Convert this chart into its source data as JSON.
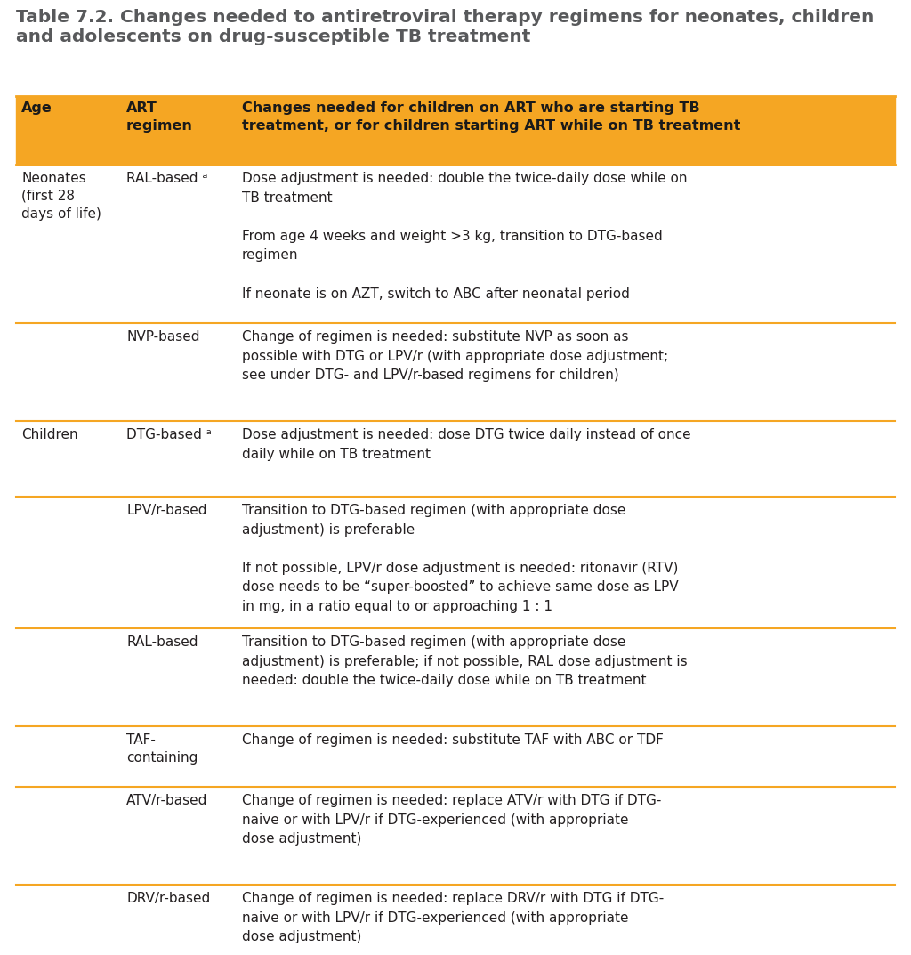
{
  "title_line1": "Table 7.2. Changes needed to antiretroviral therapy regimens for neonates, children",
  "title_line2": "and adolescents on drug-susceptible TB treatment",
  "title_color": "#58595b",
  "title_fontsize": 14.5,
  "header_bg": "#f5a623",
  "header_text_color": "#1a1a1a",
  "body_bg": "#ffffff",
  "body_text_color": "#231f20",
  "separator_color": "#f5a623",
  "font_family": "DejaVu Sans",
  "body_fontsize": 11.0,
  "header_fontsize": 11.5,
  "header_col0": "Age",
  "header_col1": "ART\nregimen",
  "header_col2": "Changes needed for children on ART who are starting TB\ntreatment, or for children starting ART while on TB treatment",
  "rows": [
    {
      "age": "Neonates\n(first 28\ndays of life)",
      "regimen": "RAL-based ᵃ",
      "changes": "Dose adjustment is needed: double the twice-daily dose while on\nTB treatment\n\nFrom age 4 weeks and weight >3 kg, transition to DTG-based\nregimen\n\nIf neonate is on AZT, switch to ABC after neonatal period",
      "draw_age": true,
      "separator": true
    },
    {
      "age": "",
      "regimen": "NVP-based",
      "changes": "Change of regimen is needed: substitute NVP as soon as\npossible with DTG or LPV/r (with appropriate dose adjustment;\nsee under DTG- and LPV/r-based regimens for children)",
      "draw_age": false,
      "separator": true
    },
    {
      "age": "Children",
      "regimen": "DTG-based ᵃ",
      "changes": "Dose adjustment is needed: dose DTG twice daily instead of once\ndaily while on TB treatment",
      "draw_age": true,
      "separator": true
    },
    {
      "age": "",
      "regimen": "LPV/r-based",
      "changes": "Transition to DTG-based regimen (with appropriate dose\nadjustment) is preferable\n\nIf not possible, LPV/r dose adjustment is needed: ritonavir (RTV)\ndose needs to be “super-boosted” to achieve same dose as LPV\nin mg, in a ratio equal to or approaching 1 : 1",
      "draw_age": false,
      "separator": true
    },
    {
      "age": "",
      "regimen": "RAL-based",
      "changes": "Transition to DTG-based regimen (with appropriate dose\nadjustment) is preferable; if not possible, RAL dose adjustment is\nneeded: double the twice-daily dose while on TB treatment",
      "draw_age": false,
      "separator": true
    },
    {
      "age": "",
      "regimen": "TAF-\ncontaining",
      "changes": "Change of regimen is needed: substitute TAF with ABC or TDF",
      "draw_age": false,
      "separator": true
    },
    {
      "age": "",
      "regimen": "ATV/r-based",
      "changes": "Change of regimen is needed: replace ATV/r with DTG if DTG-\nnaive or with LPV/r if DTG-experienced (with appropriate\ndose adjustment)",
      "draw_age": false,
      "separator": true
    },
    {
      "age": "",
      "regimen": "DRV/r-based",
      "changes": "Change of regimen is needed: replace DRV/r with DTG if DTG-\nnaive or with LPV/r if DTG-experienced (with appropriate\ndose adjustment)",
      "draw_age": false,
      "separator": false
    }
  ]
}
